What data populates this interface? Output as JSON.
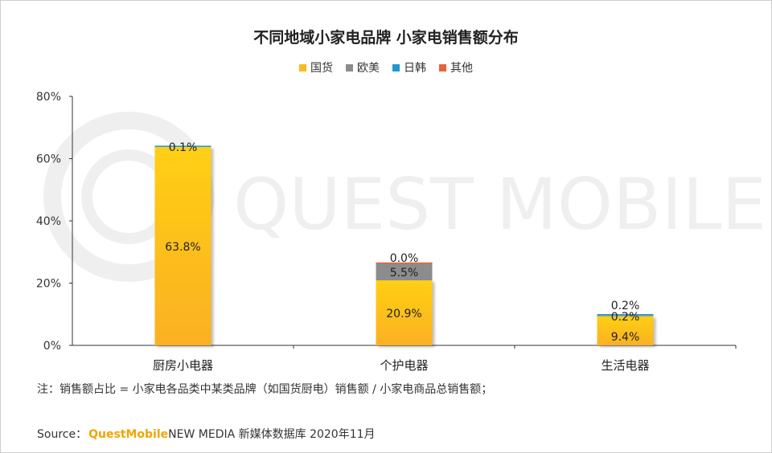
{
  "chart_data": {
    "type": "bar",
    "stacked": true,
    "title": "不同地域小家电品牌 小家电销售额分布",
    "categories": [
      "厨房小电器",
      "个护电器",
      "生活电器"
    ],
    "series": [
      {
        "name": "国货",
        "values": [
          63.8,
          20.9,
          9.4
        ],
        "labels": [
          "63.8%",
          "20.9%",
          "9.4%"
        ],
        "color": "#fdb81e"
      },
      {
        "name": "欧美",
        "values": [
          0.0,
          5.5,
          0.0
        ],
        "labels": [
          "",
          "5.5%",
          ""
        ],
        "color": "#8c8c8c"
      },
      {
        "name": "日韩",
        "values": [
          0.1,
          0.0,
          0.2
        ],
        "labels": [
          "0.1%",
          "",
          "0.2%"
        ],
        "color": "#1f97d4"
      },
      {
        "name": "其他",
        "values": [
          0.0,
          0.0,
          0.2
        ],
        "labels": [
          "",
          "0.0%",
          "0.2%"
        ],
        "color": "#e8623c"
      }
    ],
    "yticks": [
      "0%",
      "20%",
      "40%",
      "60%",
      "80%"
    ],
    "ylim": [
      0,
      80
    ],
    "grid": false,
    "legend_position": "top"
  },
  "watermark": "QUEST MOBILE",
  "note": "注：销售额占比 = 小家电各品类中某类品牌（如国货厨电）销售额 / 小家电商品总销售额；",
  "source": {
    "prefix": "Source：",
    "brand": "QuestMobile",
    "rest": " NEW MEDIA 新媒体数据库 2020年11月"
  }
}
